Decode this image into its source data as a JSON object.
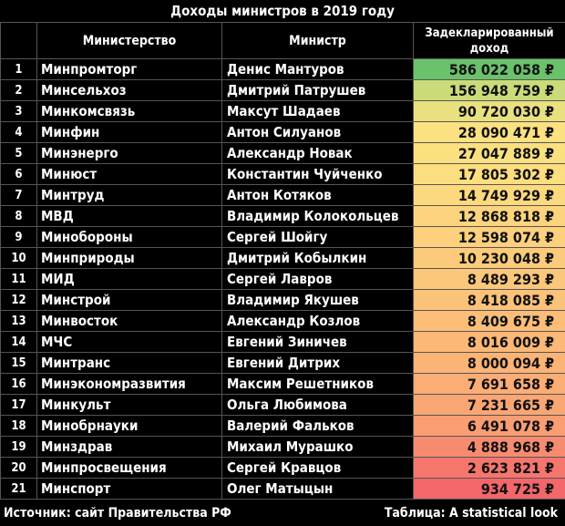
{
  "title": "Доходы министров в 2019 году",
  "header": {
    "num": "",
    "ministry": "Министерство",
    "minister": "Министр",
    "income": "Задекларированный доход"
  },
  "chart_data": {
    "type": "table",
    "columns": [
      "",
      "Министерство",
      "Министр",
      "Задекларированный доход"
    ],
    "rows": [
      {
        "n": "1",
        "ministry": "Минпромторг",
        "minister": "Денис Мантуров",
        "income": "586 022 058 ₽",
        "value": 586022058,
        "color": "#6ac26a"
      },
      {
        "n": "2",
        "ministry": "Минсельхоз",
        "minister": "Дмитрий Патрушев",
        "income": "156 948 759 ₽",
        "value": 156948759,
        "color": "#ccdb7a"
      },
      {
        "n": "3",
        "ministry": "Минкомсвязь",
        "minister": "Максут Шадаев",
        "income": "90 720 030 ₽",
        "value": 90720030,
        "color": "#e9e07f"
      },
      {
        "n": "4",
        "ministry": "Минфин",
        "minister": "Антон Силуанов",
        "income": "28 090 471 ₽",
        "value": 28090471,
        "color": "#fbe181"
      },
      {
        "n": "5",
        "ministry": "Минэнерго",
        "minister": "Александр Новак",
        "income": "27 047 889 ₽",
        "value": 27047889,
        "color": "#fbe080"
      },
      {
        "n": "6",
        "ministry": "Минюст",
        "minister": "Константин Чуйченко",
        "income": "17 805 302 ₽",
        "value": 17805302,
        "color": "#fcdd7f"
      },
      {
        "n": "7",
        "ministry": "Минтруд",
        "minister": "Антон Котяков",
        "income": "14 749 929 ₽",
        "value": 14749929,
        "color": "#fcd97e"
      },
      {
        "n": "8",
        "ministry": "МВД",
        "minister": "Владимир Колокольцев",
        "income": "12 868 818 ₽",
        "value": 12868818,
        "color": "#fcd47d"
      },
      {
        "n": "9",
        "ministry": "Минобороны",
        "minister": "Сергей Шойгу",
        "income": "12 598 074 ₽",
        "value": 12598074,
        "color": "#fcd07c"
      },
      {
        "n": "10",
        "ministry": "Минприроды",
        "minister": "Дмитрий Кобылкин",
        "income": "10 230 048 ₽",
        "value": 10230048,
        "color": "#fbcb7b"
      },
      {
        "n": "11",
        "ministry": "МИД",
        "minister": "Сергей Лавров",
        "income": "8 489 293 ₽",
        "value": 8489293,
        "color": "#fbc77a"
      },
      {
        "n": "12",
        "ministry": "Минстрой",
        "minister": "Владимир Якушев",
        "income": "8 418 085 ₽",
        "value": 8418085,
        "color": "#fbc279"
      },
      {
        "n": "13",
        "ministry": "Минвосток",
        "minister": "Александр Козлов",
        "income": "8 409 675 ₽",
        "value": 8409675,
        "color": "#fbbd78"
      },
      {
        "n": "14",
        "ministry": "МЧС",
        "minister": "Евгений Зиничев",
        "income": "8 016 009 ₽",
        "value": 8016009,
        "color": "#fbb877"
      },
      {
        "n": "15",
        "ministry": "Минтранс",
        "minister": "Евгений Дитрих",
        "income": "8 000 094 ₽",
        "value": 8000094,
        "color": "#fbb376"
      },
      {
        "n": "16",
        "ministry": "Минэкономразвития",
        "minister": "Максим Решетников",
        "income": "7 691 658 ₽",
        "value": 7691658,
        "color": "#fbad75"
      },
      {
        "n": "17",
        "ministry": "Минкульт",
        "minister": "Ольга Любимова",
        "income": "7 231 665 ₽",
        "value": 7231665,
        "color": "#faa674"
      },
      {
        "n": "18",
        "ministry": "Минобрнауки",
        "minister": "Валерий Фальков",
        "income": "6 491 078 ₽",
        "value": 6491078,
        "color": "#f99d72"
      },
      {
        "n": "19",
        "ministry": "Минздрав",
        "minister": "Михаил Мурашко",
        "income": "4 888 968 ₽",
        "value": 4888968,
        "color": "#f78b70"
      },
      {
        "n": "20",
        "ministry": "Минпросвещения",
        "minister": "Сергей Кравцов",
        "income": "2 623 821 ₽",
        "value": 2623821,
        "color": "#f5766d"
      },
      {
        "n": "21",
        "ministry": "Минспорт",
        "minister": "Олег Матыцын",
        "income": "934 725 ₽",
        "value": 934725,
        "color": "#f3666a"
      }
    ]
  },
  "footer": {
    "source": "Источник: сайт Правительства РФ",
    "credit": "Таблица: A statistical look"
  }
}
